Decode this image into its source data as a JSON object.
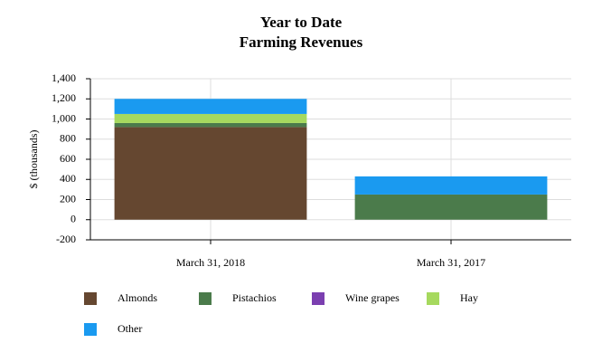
{
  "chart_data": {
    "type": "stacked_bar",
    "title": "Year to Date",
    "subtitle": "Farming Revenues",
    "y_label": "$ (thousands)",
    "categories": [
      "March 31, 2018",
      "March 31, 2017"
    ],
    "series": [
      {
        "name": "Almonds",
        "color": "#654730",
        "values": [
          920,
          0
        ]
      },
      {
        "name": "Pistachios",
        "color": "#4b7b4b",
        "values": [
          40,
          250
        ]
      },
      {
        "name": "Wine grapes",
        "color": "#7b3fb0",
        "values": [
          0,
          0
        ]
      },
      {
        "name": "Hay",
        "color": "#a6d95e",
        "values": [
          90,
          0
        ]
      },
      {
        "name": "Other",
        "color": "#1a9af0",
        "values": [
          150,
          180
        ]
      }
    ],
    "ylim": [
      -200,
      1400
    ],
    "yticks": [
      -200,
      0,
      200,
      400,
      600,
      800,
      {
        "value": 1000,
        "label": "1,000"
      },
      {
        "value": 1200,
        "label": "1,200"
      },
      {
        "value": 1400,
        "label": "1,400"
      }
    ],
    "grid": true
  }
}
